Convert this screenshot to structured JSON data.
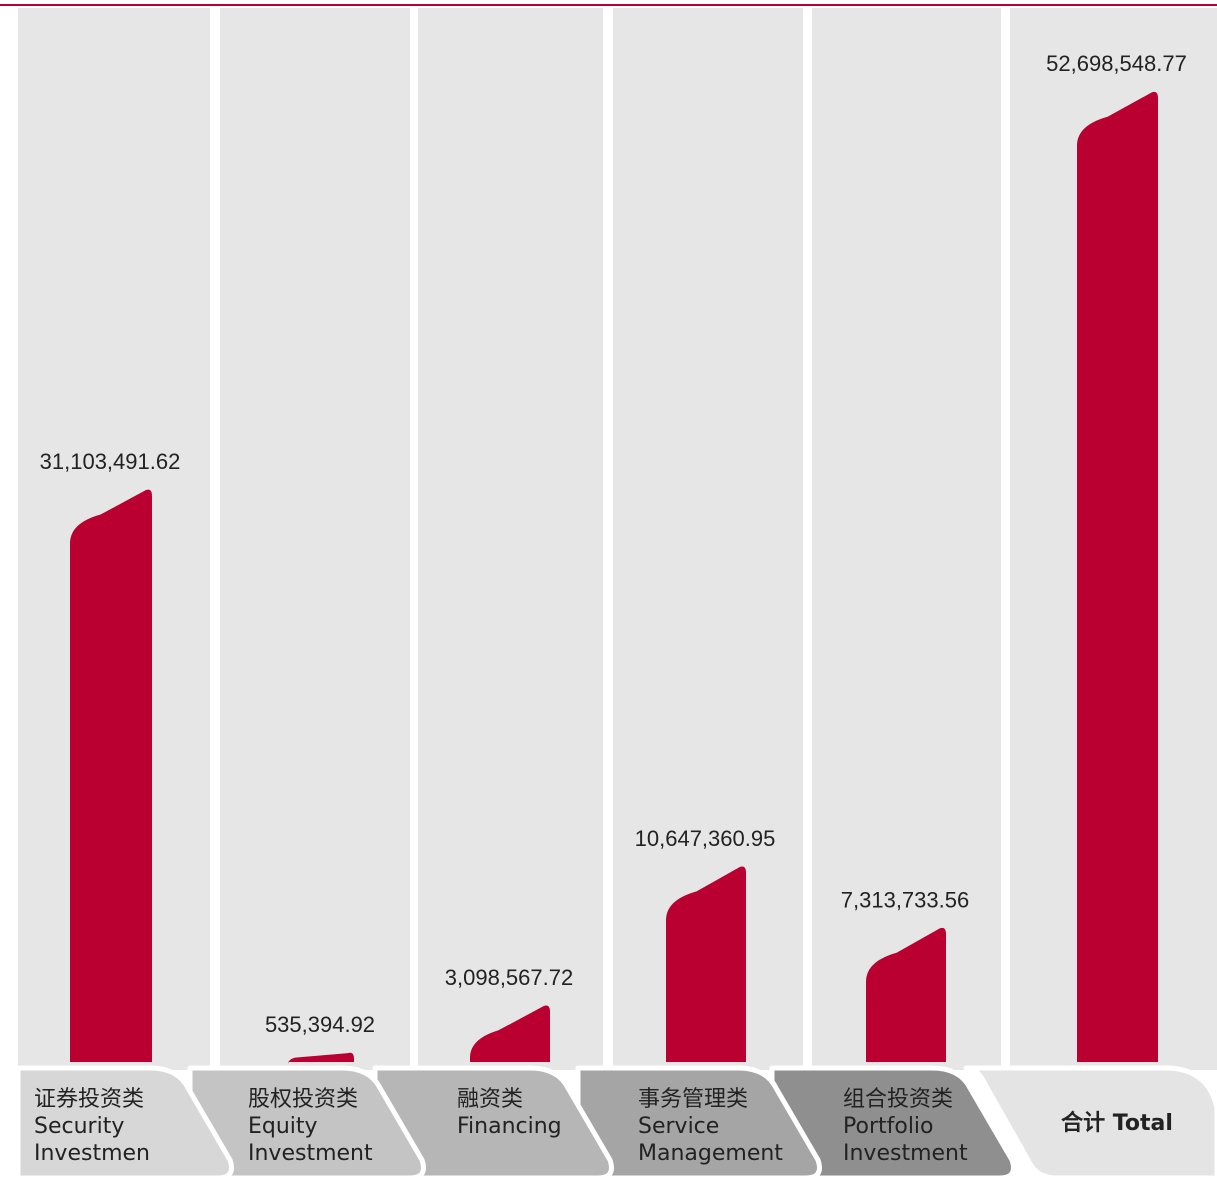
{
  "colors": {
    "bar": "#b90030",
    "column_bg": "#e6e6e6",
    "top_rule": "#b90030",
    "text": "#222222",
    "tab_fills": [
      "#d7d7d7",
      "#c4c4c4",
      "#b6b6b6",
      "#a5a5a5",
      "#8f8f8f",
      "#e4e4e4"
    ]
  },
  "chart_data": {
    "type": "bar",
    "categories": [
      [
        "证券投资类",
        "Security",
        "Investmen"
      ],
      [
        "股权投资类",
        "Equity",
        "Investment"
      ],
      [
        "融资类",
        "Financing"
      ],
      [
        "事务管理类",
        "Service",
        "Management"
      ],
      [
        "组合投资类",
        "Portfolio",
        "Investment"
      ],
      [
        "合计 Total"
      ]
    ],
    "values": [
      31103491.62,
      535394.92,
      3098567.72,
      10647360.95,
      7313733.56,
      52698548.77
    ],
    "value_labels": [
      "31,103,491.62",
      "535,394.92",
      "3,098,567.72",
      "10,647,360.95",
      "7,313,733.56",
      "52,698,548.77"
    ],
    "ylim": [
      0,
      57000000
    ],
    "grid": false,
    "legend": "none"
  }
}
